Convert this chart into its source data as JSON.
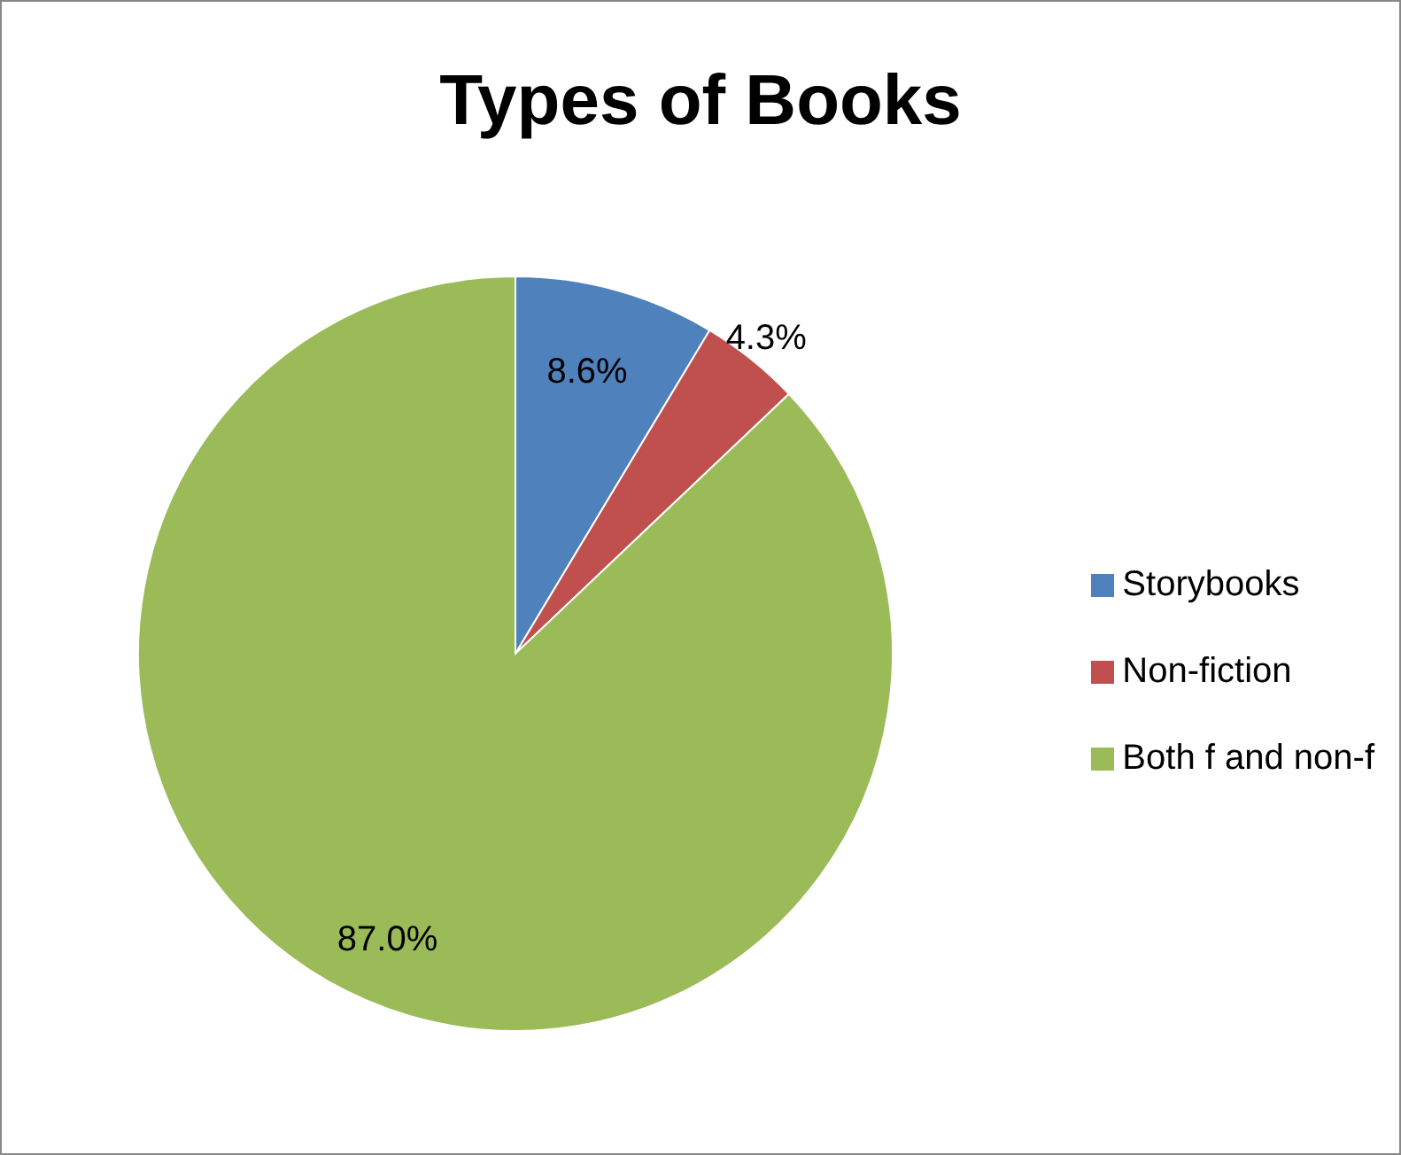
{
  "chart_data": {
    "type": "pie",
    "title": "Types of Books",
    "categories": [
      "Storybooks",
      "Non-fiction",
      "Both f and non-f"
    ],
    "values": [
      8.6,
      4.3,
      87.0
    ],
    "colors": [
      "#4f81bd",
      "#c0504d",
      "#9bbb59"
    ],
    "value_labels": [
      "8.6%",
      "4.3%",
      "87.0%"
    ],
    "legend": "right"
  }
}
